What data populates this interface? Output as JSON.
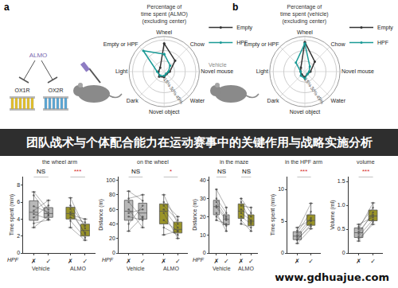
{
  "diagram": {
    "panels": [
      {
        "label": "a",
        "drug": "ALMO",
        "receptors": [
          "OX1R",
          "OX2R"
        ]
      },
      {
        "label": "b",
        "treatment": "Vehicle"
      }
    ]
  },
  "banner": "团队战术与个体配合能力在运动赛事中的关键作用与战略实施分析",
  "watermark": "www.gdhuajue.com",
  "chart_data": [
    {
      "type": "radar",
      "title": [
        "Percentage of",
        "time spent (ALMO)"
      ],
      "subtitle": "(excluding center)",
      "categories": [
        "Wheel",
        "Chow",
        "Novel mouse",
        "Water",
        "Novel object",
        "Dark",
        "Light",
        "Empty or HPF"
      ],
      "series": [
        {
          "name": "Empty",
          "color": "#333333",
          "values": [
            40,
            22,
            8,
            5,
            8,
            10,
            8,
            8
          ]
        },
        {
          "name": "HPF",
          "color": "#1a9a96",
          "values": [
            25,
            12,
            6,
            4,
            6,
            8,
            10,
            42
          ]
        }
      ],
      "ylim": [
        0,
        50
      ],
      "yticks": [
        {
          "value": 15,
          "label": "15%"
        },
        {
          "value": 30,
          "label": "30%"
        },
        {
          "value": 45,
          "label": "45%"
        }
      ],
      "grid": true,
      "legend": "top right"
    },
    {
      "type": "radar",
      "title": [
        "Percentage of",
        "time spent (vehicle)"
      ],
      "subtitle": "(excluding center)",
      "categories": [
        "Wheel",
        "Chow",
        "Novel mouse",
        "Water",
        "Novel object",
        "Dark",
        "Light",
        "Empty or HPF"
      ],
      "series": [
        {
          "name": "Empty",
          "color": "#333333",
          "values": [
            42,
            20,
            8,
            5,
            8,
            6,
            6,
            8
          ]
        },
        {
          "name": "HPF",
          "color": "#1a9a96",
          "values": [
            40,
            10,
            6,
            5,
            10,
            8,
            6,
            18
          ]
        }
      ],
      "ylim": [
        0,
        50
      ],
      "yticks": [
        {
          "value": 15,
          "label": "15%"
        },
        {
          "value": 30,
          "label": "30%"
        },
        {
          "value": 45,
          "label": "45%"
        }
      ],
      "grid": true,
      "legend": "top right"
    },
    {
      "type": "box",
      "title": "the wheel arm",
      "ylabel": "Time spent (min)",
      "x_label": "HPF",
      "categories": [
        "✗",
        "✓",
        "✗",
        "✓"
      ],
      "series": [
        {
          "name": "Vehicle",
          "color": "#b8b8b8",
          "values": [
            [
              5.5,
              4.8
            ],
            [
              4.2,
              5.6
            ],
            [
              6.8,
              4.5
            ],
            [
              3.5,
              3.9
            ],
            [
              5.0,
              6.2
            ],
            [
              4.6,
              4.0
            ],
            [
              7.2,
              5.1
            ],
            [
              3.0,
              4.4
            ]
          ]
        },
        {
          "name": "ALMO",
          "color": "#9a9428",
          "values": [
            [
              4.8,
              2.4
            ],
            [
              5.6,
              3.2
            ],
            [
              3.8,
              1.8
            ],
            [
              6.5,
              2.9
            ],
            [
              4.2,
              3.6
            ],
            [
              3.0,
              1.5
            ],
            [
              5.2,
              2.2
            ],
            [
              4.5,
              4.0
            ]
          ]
        }
      ],
      "annotations": [
        {
          "text": "NS",
          "color": "#000000"
        },
        {
          "text": "***",
          "color": "#d62728"
        }
      ],
      "ylim": [
        0,
        9
      ],
      "yticks": [
        0,
        2,
        4,
        6,
        8
      ],
      "grid": false
    },
    {
      "type": "box",
      "title": "on the wheel",
      "ylabel": "Distance (m)",
      "x_label": "HPF",
      "categories": [
        "✗",
        "✓",
        "✗",
        "✓"
      ],
      "series": [
        {
          "name": "Vehicle",
          "color": "#b8b8b8",
          "values": [
            [
              55,
              60
            ],
            [
              70,
              48
            ],
            [
              40,
              65
            ],
            [
              85,
              72
            ],
            [
              60,
              35
            ],
            [
              30,
              50
            ],
            [
              75,
              80
            ],
            [
              50,
              45
            ]
          ]
        },
        {
          "name": "ALMO",
          "color": "#9a9428",
          "values": [
            [
              60,
              35
            ],
            [
              45,
              30
            ],
            [
              80,
              40
            ],
            [
              35,
              25
            ],
            [
              70,
              50
            ],
            [
              55,
              20
            ],
            [
              25,
              30
            ],
            [
              65,
              45
            ]
          ]
        }
      ],
      "annotations": [
        {
          "text": "NS",
          "color": "#000000"
        },
        {
          "text": "*",
          "color": "#d62728"
        }
      ],
      "ylim": [
        0,
        105
      ],
      "yticks": [
        0,
        20,
        40,
        60,
        80,
        100
      ],
      "grid": false
    },
    {
      "type": "box",
      "title": "in the maze",
      "ylabel": "Distance (m)",
      "x_label": "HPF",
      "categories": [
        "✗",
        "✓",
        "✗",
        "✓"
      ],
      "series": [
        {
          "name": "Vehicle",
          "color": "#b8b8b8",
          "values": [
            [
              25,
              18
            ],
            [
              30,
              22
            ],
            [
              20,
              15
            ],
            [
              28,
              20
            ],
            [
              22,
              12
            ],
            [
              35,
              25
            ],
            [
              18,
              16
            ],
            [
              26,
              19
            ]
          ]
        },
        {
          "name": "ALMO",
          "color": "#9a9428",
          "values": [
            [
              24,
              20
            ],
            [
              20,
              16
            ],
            [
              30,
              22
            ],
            [
              16,
              14
            ],
            [
              26,
              25
            ],
            [
              22,
              18
            ],
            [
              18,
              12
            ],
            [
              28,
              17
            ]
          ]
        }
      ],
      "annotations": [
        {
          "text": "NS",
          "color": "#000000"
        },
        {
          "text": "NS",
          "color": "#000000"
        }
      ],
      "ylim": [
        0,
        42
      ],
      "yticks": [
        0,
        10,
        20,
        30,
        40
      ],
      "grid": false
    },
    {
      "type": "box",
      "title": "in the HPF arm",
      "ylabel": "Time spent (min)",
      "categories": [
        "✗",
        "✓"
      ],
      "series": [
        {
          "colors": [
            "#b8b8b8",
            "#9a9428"
          ],
          "values": [
            [
              2.5,
              5.0
            ],
            [
              2.0,
              4.5
            ],
            [
              3.2,
              6.5
            ],
            [
              1.5,
              3.8
            ],
            [
              2.8,
              5.5
            ],
            [
              3.5,
              7.8
            ],
            [
              2.2,
              4.2
            ],
            [
              4.0,
              5.2
            ]
          ]
        }
      ],
      "annotations": [
        {
          "text": "***",
          "color": "#d62728"
        }
      ],
      "ylim": [
        0,
        12
      ],
      "yticks": [
        0,
        5,
        10
      ],
      "grid": false
    },
    {
      "type": "box",
      "title": "volume",
      "ylabel": "Volume (ml)",
      "categories": [
        "✗",
        "✓"
      ],
      "series": [
        {
          "colors": [
            "#b8b8b8",
            "#9a9428"
          ],
          "values": [
            [
              0.45,
              0.8
            ],
            [
              0.35,
              0.7
            ],
            [
              0.55,
              0.95
            ],
            [
              0.3,
              0.6
            ],
            [
              0.5,
              1.05
            ],
            [
              0.6,
              0.75
            ],
            [
              0.4,
              0.85
            ],
            [
              0.25,
              0.65
            ]
          ]
        }
      ],
      "annotations": [
        {
          "text": "***",
          "color": "#d62728"
        }
      ],
      "ylim": [
        0,
        1.6
      ],
      "yticks": [
        0,
        0.5,
        {
          "value": 1,
          "label": "1.0"
        },
        1.5
      ],
      "grid": false
    }
  ]
}
